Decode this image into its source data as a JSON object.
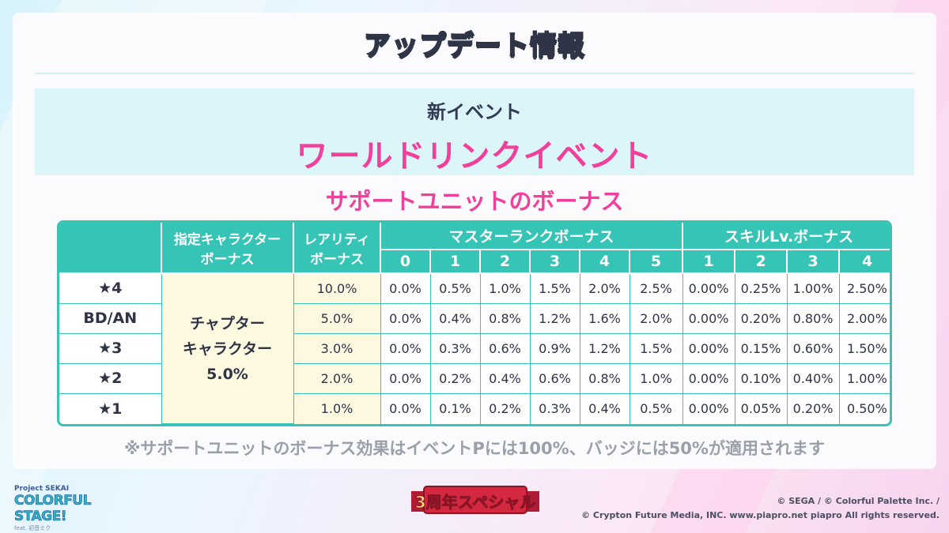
{
  "header": {
    "title": "アップデート情報"
  },
  "event": {
    "subtitle": "新イベント",
    "name": "ワールドリンクイベント"
  },
  "section_title": "サポートユニットのボーナス",
  "table": {
    "header_designated": [
      "指定キャラクター",
      "ボーナス"
    ],
    "header_rarity": [
      "レアリティ",
      "ボーナス"
    ],
    "header_master": "マスターランクボーナス",
    "header_skill": "スキルLv.ボーナス",
    "master_levels": [
      "0",
      "1",
      "2",
      "3",
      "4",
      "5"
    ],
    "skill_levels": [
      "1",
      "2",
      "3",
      "4"
    ],
    "chapter_bonus": [
      "チャプター",
      "キャラクター",
      "5.0%"
    ],
    "rows": [
      {
        "rarity": "★4",
        "rarity_bonus": "10.0%",
        "master": [
          "0.0%",
          "0.5%",
          "1.0%",
          "1.5%",
          "2.0%",
          "2.5%"
        ],
        "skill": [
          "0.00%",
          "0.25%",
          "1.00%",
          "2.50%"
        ]
      },
      {
        "rarity": "BD/AN",
        "rarity_bonus": "5.0%",
        "master": [
          "0.0%",
          "0.4%",
          "0.8%",
          "1.2%",
          "1.6%",
          "2.0%"
        ],
        "skill": [
          "0.00%",
          "0.20%",
          "0.80%",
          "2.00%"
        ]
      },
      {
        "rarity": "★3",
        "rarity_bonus": "3.0%",
        "master": [
          "0.0%",
          "0.3%",
          "0.6%",
          "0.9%",
          "1.2%",
          "1.5%"
        ],
        "skill": [
          "0.00%",
          "0.15%",
          "0.60%",
          "1.50%"
        ]
      },
      {
        "rarity": "★2",
        "rarity_bonus": "2.0%",
        "master": [
          "0.0%",
          "0.2%",
          "0.4%",
          "0.6%",
          "0.8%",
          "1.0%"
        ],
        "skill": [
          "0.00%",
          "0.10%",
          "0.40%",
          "1.00%"
        ]
      },
      {
        "rarity": "★1",
        "rarity_bonus": "1.0%",
        "master": [
          "0.0%",
          "0.1%",
          "0.2%",
          "0.3%",
          "0.4%",
          "0.5%"
        ],
        "skill": [
          "0.00%",
          "0.05%",
          "0.20%",
          "0.50%"
        ]
      }
    ]
  },
  "note": "※サポートユニットのボーナス効果はイベントPには100%、バッジには50%が適用されます",
  "logo": {
    "small": "Project SEKAI",
    "main": "COLORFUL STAGE!",
    "sub": "feat. 初音ミク"
  },
  "anniversary": "3周年スペシャル",
  "copyright": [
    "© SEGA / © Colorful Palette Inc. /",
    "© Crypton Future Media, INC. www.piapro.net piapro All rights reserved."
  ],
  "colors": {
    "accent_teal": "#35c4b5",
    "accent_pink": "#f0409b",
    "cell_cream": "#fdf9e1"
  }
}
